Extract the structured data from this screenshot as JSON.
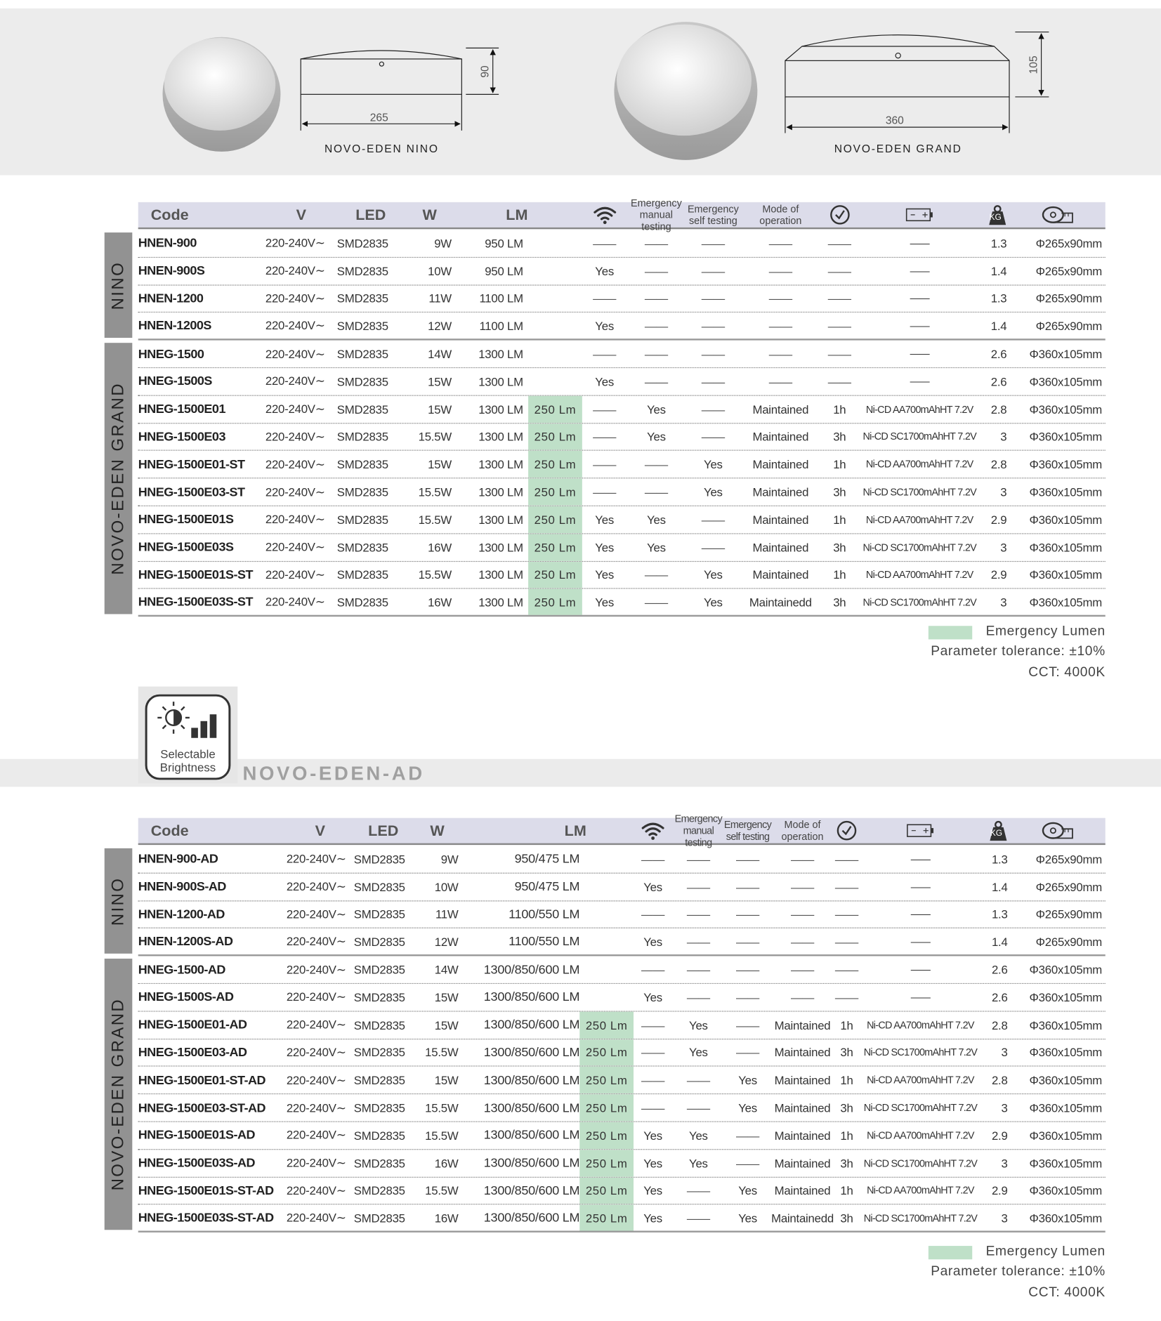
{
  "top": {
    "products": [
      {
        "name": "NOVO-EDEN NINO",
        "width": "265",
        "height": "90"
      },
      {
        "name": "NOVO-EDEN GRAND",
        "width": "360",
        "height": "105"
      }
    ]
  },
  "feature": {
    "icon_label": "Selectable Brightness",
    "title": "NOVO-EDEN-AD"
  },
  "tables": [
    {
      "header": {
        "code": "Code",
        "v": "V",
        "led": "LED",
        "w": "W",
        "lm": "LM",
        "manual": "Emergency manual testing",
        "self": "Emergency self testing",
        "mode": "Mode of operation",
        "kg": "KG"
      },
      "groups": [
        {
          "label": "NINO",
          "rows": [
            {
              "code": "HNEN-900",
              "v": "220-240V∼",
              "led": "SMD2835",
              "w": "9W",
              "lm": "950 LM",
              "wifi": "——",
              "manual": "——",
              "self": "——",
              "mode": "——",
              "time": "——",
              "battery": "——",
              "kg": "1.3",
              "dim": "Φ265x90mm"
            },
            {
              "code": "HNEN-900S",
              "v": "220-240V∼",
              "led": "SMD2835",
              "w": "10W",
              "lm": "950 LM",
              "wifi": "Yes",
              "manual": "——",
              "self": "——",
              "mode": "——",
              "time": "——",
              "battery": "——",
              "kg": "1.4",
              "dim": "Φ265x90mm"
            },
            {
              "code": "HNEN-1200",
              "v": "220-240V∼",
              "led": "SMD2835",
              "w": "11W",
              "lm": "1100 LM",
              "wifi": "——",
              "manual": "——",
              "self": "——",
              "mode": "——",
              "time": "——",
              "battery": "——",
              "kg": "1.3",
              "dim": "Φ265x90mm"
            },
            {
              "code": "HNEN-1200S",
              "v": "220-240V∼",
              "led": "SMD2835",
              "w": "12W",
              "lm": "1100 LM",
              "wifi": "Yes",
              "manual": "——",
              "self": "——",
              "mode": "——",
              "time": "——",
              "battery": "——",
              "kg": "1.4",
              "dim": "Φ265x90mm"
            }
          ]
        },
        {
          "label": "NOVO-EDEN GRAND",
          "rows": [
            {
              "code": "HNEG-1500",
              "v": "220-240V∼",
              "led": "SMD2835",
              "w": "14W",
              "lm": "1300 LM",
              "wifi": "——",
              "manual": "——",
              "self": "——",
              "mode": "——",
              "time": "——",
              "battery": "——",
              "kg": "2.6",
              "dim": "Φ360x105mm"
            },
            {
              "code": "HNEG-1500S",
              "v": "220-240V∼",
              "led": "SMD2835",
              "w": "15W",
              "lm": "1300 LM",
              "wifi": "Yes",
              "manual": "——",
              "self": "——",
              "mode": "——",
              "time": "——",
              "battery": "——",
              "kg": "2.6",
              "dim": "Φ360x105mm"
            },
            {
              "code": "HNEG-1500E01",
              "v": "220-240V∼",
              "led": "SMD2835",
              "w": "15W",
              "lm": "1300 LM",
              "em": "250 Lm",
              "wifi": "——",
              "manual": "Yes",
              "self": "——",
              "mode": "Maintained",
              "time": "1h",
              "battery": "Ni-CD AA700mAhHT 7.2V",
              "kg": "2.8",
              "dim": "Φ360x105mm"
            },
            {
              "code": "HNEG-1500E03",
              "v": "220-240V∼",
              "led": "SMD2835",
              "w": "15.5W",
              "lm": "1300 LM",
              "em": "250 Lm",
              "wifi": "——",
              "manual": "Yes",
              "self": "——",
              "mode": "Maintained",
              "time": "3h",
              "battery": "Ni-CD SC1700mAhHT 7.2V",
              "kg": "3",
              "dim": "Φ360x105mm"
            },
            {
              "code": "HNEG-1500E01-ST",
              "v": "220-240V∼",
              "led": "SMD2835",
              "w": "15W",
              "lm": "1300 LM",
              "em": "250 Lm",
              "wifi": "——",
              "manual": "——",
              "self": "Yes",
              "mode": "Maintained",
              "time": "1h",
              "battery": "Ni-CD AA700mAhHT 7.2V",
              "kg": "2.8",
              "dim": "Φ360x105mm"
            },
            {
              "code": "HNEG-1500E03-ST",
              "v": "220-240V∼",
              "led": "SMD2835",
              "w": "15.5W",
              "lm": "1300 LM",
              "em": "250 Lm",
              "wifi": "——",
              "manual": "——",
              "self": "Yes",
              "mode": "Maintained",
              "time": "3h",
              "battery": "Ni-CD SC1700mAhHT 7.2V",
              "kg": "3",
              "dim": "Φ360x105mm"
            },
            {
              "code": "HNEG-1500E01S",
              "v": "220-240V∼",
              "led": "SMD2835",
              "w": "15.5W",
              "lm": "1300 LM",
              "em": "250 Lm",
              "wifi": "Yes",
              "manual": "Yes",
              "self": "——",
              "mode": "Maintained",
              "time": "1h",
              "battery": "Ni-CD AA700mAhHT 7.2V",
              "kg": "2.9",
              "dim": "Φ360x105mm"
            },
            {
              "code": "HNEG-1500E03S",
              "v": "220-240V∼",
              "led": "SMD2835",
              "w": "16W",
              "lm": "1300 LM",
              "em": "250 Lm",
              "wifi": "Yes",
              "manual": "Yes",
              "self": "——",
              "mode": "Maintained",
              "time": "3h",
              "battery": "Ni-CD SC1700mAhHT 7.2V",
              "kg": "3",
              "dim": "Φ360x105mm"
            },
            {
              "code": "HNEG-1500E01S-ST",
              "v": "220-240V∼",
              "led": "SMD2835",
              "w": "15.5W",
              "lm": "1300 LM",
              "em": "250 Lm",
              "wifi": "Yes",
              "manual": "——",
              "self": "Yes",
              "mode": "Maintained",
              "time": "1h",
              "battery": "Ni-CD AA700mAhHT 7.2V",
              "kg": "2.9",
              "dim": "Φ360x105mm"
            },
            {
              "code": "HNEG-1500E03S-ST",
              "v": "220-240V∼",
              "led": "SMD2835",
              "w": "16W",
              "lm": "1300 LM",
              "em": "250 Lm",
              "wifi": "Yes",
              "manual": "——",
              "self": "Yes",
              "mode": "Maintainedd",
              "time": "3h",
              "battery": "Ni-CD SC1700mAhHT 7.2V",
              "kg": "3",
              "dim": "Φ360x105mm"
            }
          ]
        }
      ],
      "legend": {
        "swatch": "Emergency Lumen",
        "tolerance": "Parameter tolerance: ±10%",
        "cct": "CCT: 4000K"
      }
    },
    {
      "header": {
        "code": "Code",
        "v": "V",
        "led": "LED",
        "w": "W",
        "lm": "LM",
        "manual": "Emergency manual testing",
        "self": "Emergency self testing",
        "mode": "Mode of operation",
        "kg": "KG"
      },
      "groups": [
        {
          "label": "NINO",
          "rows": [
            {
              "code": "HNEN-900-AD",
              "v": "220-240V∼",
              "led": "SMD2835",
              "w": "9W",
              "lm": "950/475 LM",
              "wifi": "——",
              "manual": "——",
              "self": "——",
              "mode": "——",
              "time": "——",
              "battery": "——",
              "kg": "1.3",
              "dim": "Φ265x90mm"
            },
            {
              "code": "HNEN-900S-AD",
              "v": "220-240V∼",
              "led": "SMD2835",
              "w": "10W",
              "lm": "950/475 LM",
              "wifi": "Yes",
              "manual": "——",
              "self": "——",
              "mode": "——",
              "time": "——",
              "battery": "——",
              "kg": "1.4",
              "dim": "Φ265x90mm"
            },
            {
              "code": "HNEN-1200-AD",
              "v": "220-240V∼",
              "led": "SMD2835",
              "w": "11W",
              "lm": "1100/550 LM",
              "wifi": "——",
              "manual": "——",
              "self": "——",
              "mode": "——",
              "time": "——",
              "battery": "——",
              "kg": "1.3",
              "dim": "Φ265x90mm"
            },
            {
              "code": "HNEN-1200S-AD",
              "v": "220-240V∼",
              "led": "SMD2835",
              "w": "12W",
              "lm": "1100/550 LM",
              "wifi": "Yes",
              "manual": "——",
              "self": "——",
              "mode": "——",
              "time": "——",
              "battery": "——",
              "kg": "1.4",
              "dim": "Φ265x90mm"
            }
          ]
        },
        {
          "label": "NOVO-EDEN GRAND",
          "rows": [
            {
              "code": "HNEG-1500-AD",
              "v": "220-240V∼",
              "led": "SMD2835",
              "w": "14W",
              "lm": "1300/850/600 LM",
              "wifi": "——",
              "manual": "——",
              "self": "——",
              "mode": "——",
              "time": "——",
              "battery": "——",
              "kg": "2.6",
              "dim": "Φ360x105mm"
            },
            {
              "code": "HNEG-1500S-AD",
              "v": "220-240V∼",
              "led": "SMD2835",
              "w": "15W",
              "lm": "1300/850/600 LM",
              "wifi": "Yes",
              "manual": "——",
              "self": "——",
              "mode": "——",
              "time": "——",
              "battery": "——",
              "kg": "2.6",
              "dim": "Φ360x105mm"
            },
            {
              "code": "HNEG-1500E01-AD",
              "v": "220-240V∼",
              "led": "SMD2835",
              "w": "15W",
              "lm": "1300/850/600 LM",
              "em": "250 Lm",
              "wifi": "——",
              "manual": "Yes",
              "self": "——",
              "mode": "Maintained",
              "time": "1h",
              "battery": "Ni-CD AA700mAhHT 7.2V",
              "kg": "2.8",
              "dim": "Φ360x105mm"
            },
            {
              "code": "HNEG-1500E03-AD",
              "v": "220-240V∼",
              "led": "SMD2835",
              "w": "15.5W",
              "lm": "1300/850/600 LM",
              "em": "250 Lm",
              "wifi": "——",
              "manual": "Yes",
              "self": "——",
              "mode": "Maintained",
              "time": "3h",
              "battery": "Ni-CD SC1700mAhHT 7.2V",
              "kg": "3",
              "dim": "Φ360x105mm"
            },
            {
              "code": "HNEG-1500E01-ST-AD",
              "v": "220-240V∼",
              "led": "SMD2835",
              "w": "15W",
              "lm": "1300/850/600 LM",
              "em": "250 Lm",
              "wifi": "——",
              "manual": "——",
              "self": "Yes",
              "mode": "Maintained",
              "time": "1h",
              "battery": "Ni-CD AA700mAhHT 7.2V",
              "kg": "2.8",
              "dim": "Φ360x105mm"
            },
            {
              "code": "HNEG-1500E03-ST-AD",
              "v": "220-240V∼",
              "led": "SMD2835",
              "w": "15.5W",
              "lm": "1300/850/600 LM",
              "em": "250 Lm",
              "wifi": "——",
              "manual": "——",
              "self": "Yes",
              "mode": "Maintained",
              "time": "3h",
              "battery": "Ni-CD SC1700mAhHT 7.2V",
              "kg": "3",
              "dim": "Φ360x105mm"
            },
            {
              "code": "HNEG-1500E01S-AD",
              "v": "220-240V∼",
              "led": "SMD2835",
              "w": "15.5W",
              "lm": "1300/850/600 LM",
              "em": "250 Lm",
              "wifi": "Yes",
              "manual": "Yes",
              "self": "——",
              "mode": "Maintained",
              "time": "1h",
              "battery": "Ni-CD AA700mAhHT 7.2V",
              "kg": "2.9",
              "dim": "Φ360x105mm"
            },
            {
              "code": "HNEG-1500E03S-AD",
              "v": "220-240V∼",
              "led": "SMD2835",
              "w": "16W",
              "lm": "1300/850/600 LM",
              "em": "250 Lm",
              "wifi": "Yes",
              "manual": "Yes",
              "self": "——",
              "mode": "Maintained",
              "time": "3h",
              "battery": "Ni-CD SC1700mAhHT 7.2V",
              "kg": "3",
              "dim": "Φ360x105mm"
            },
            {
              "code": "HNEG-1500E01S-ST-AD",
              "v": "220-240V∼",
              "led": "SMD2835",
              "w": "15.5W",
              "lm": "1300/850/600 LM",
              "em": "250 Lm",
              "wifi": "Yes",
              "manual": "——",
              "self": "Yes",
              "mode": "Maintained",
              "time": "1h",
              "battery": "Ni-CD AA700mAhHT 7.2V",
              "kg": "2.9",
              "dim": "Φ360x105mm"
            },
            {
              "code": "HNEG-1500E03S-ST-AD",
              "v": "220-240V∼",
              "led": "SMD2835",
              "w": "16W",
              "lm": "1300/850/600 LM",
              "em": "250 Lm",
              "wifi": "Yes",
              "manual": "——",
              "self": "Yes",
              "mode": "Maintainedd",
              "time": "3h",
              "battery": "Ni-CD SC1700mAhHT 7.2V",
              "kg": "3",
              "dim": "Φ360x105mm"
            }
          ]
        }
      ],
      "legend": {
        "swatch": "Emergency Lumen",
        "tolerance": "Parameter tolerance: ±10%",
        "cct": "CCT: 4000K"
      }
    }
  ]
}
